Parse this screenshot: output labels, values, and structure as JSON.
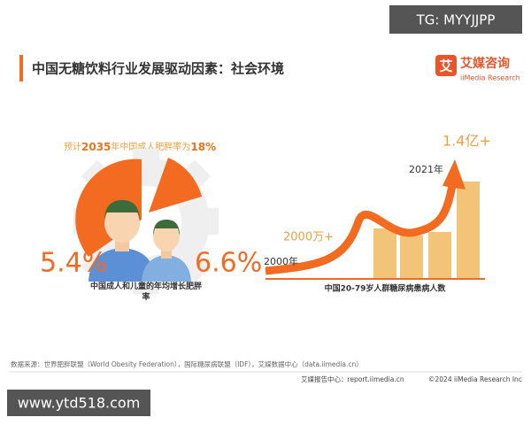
{
  "watermark_top": "TG: MYYJJPP",
  "header": {
    "title": "中国无糖饮料行业发展驱动因素：社会环境",
    "logo_icon": "艾",
    "logo_name": "艾媒咨询",
    "logo_sub": "iiMedia Research"
  },
  "left_panel": {
    "forecast": [
      "预计",
      "2035",
      "年中国成人肥胖率为",
      "18%"
    ],
    "left_value": "5.4%",
    "right_value": "6.6%",
    "caption": "中国成人和儿童的年均增长肥胖率"
  },
  "right_panel": {
    "top_value": "1.4亿+",
    "top_year": "2021年",
    "bottom_value": "2000万+",
    "bottom_year": "2000年",
    "caption": "中国20-79岁人群糖尿病患病人数"
  },
  "source": "数据来源：世界肥胖联盟（World Obesity Federation），国际糖尿病联盟（IDF），艾媒数据中心（data.iimedia.cn）",
  "footer": {
    "site": "艾媒报告中心：report.iimedia.cn",
    "copyright": "©2024  iiMedia Research  Inc"
  },
  "watermark_bottom": "www.ytd518.com"
}
